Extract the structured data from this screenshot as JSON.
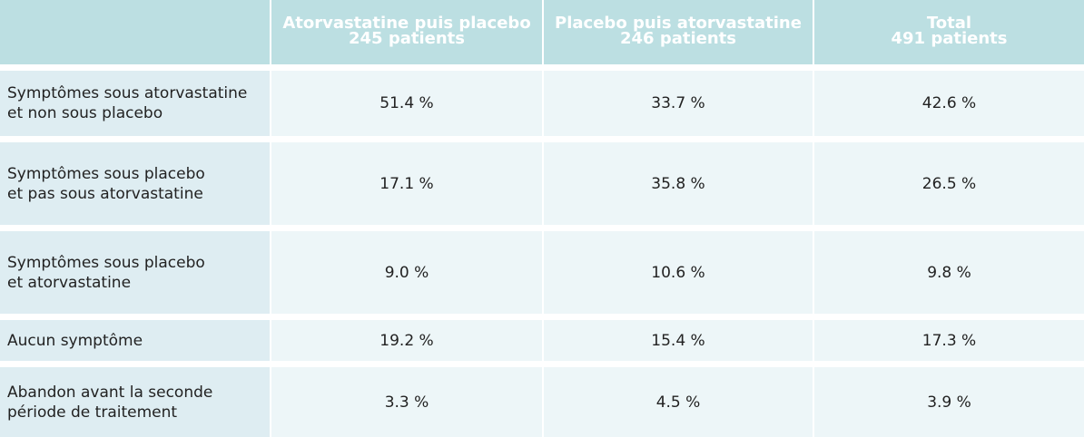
{
  "table": {
    "header": [
      [],
      [
        "Atorvastatine puis placebo",
        "245 patients"
      ],
      [
        "Placebo puis atorvastatine",
        "246 patients"
      ],
      [
        "Total",
        "491 patients"
      ]
    ],
    "rows": [
      {
        "label": [
          "Symptômes sous atorvastatine",
          "et non sous placebo"
        ],
        "cells": [
          "51.4 %",
          "33.7 %",
          "42.6 %"
        ]
      },
      {
        "label": [
          "Symptômes sous placebo",
          "et pas sous atorvastatine"
        ],
        "cells": [
          "17.1 %",
          "35.8 %",
          "26.5 %"
        ]
      },
      {
        "label": [
          "Symptômes sous placebo",
          "et atorvastatine"
        ],
        "cells": [
          "9.0 %",
          "10.6 %",
          "9.8 %"
        ]
      },
      {
        "label": [
          "Aucun symptôme"
        ],
        "cells": [
          "19.2 %",
          "15.4 %",
          "17.3 %"
        ]
      },
      {
        "label": [
          "Abandon avant la seconde",
          "période de traitement"
        ],
        "cells": [
          "3.3 %",
          "4.5 %",
          "3.9 %"
        ]
      }
    ]
  }
}
